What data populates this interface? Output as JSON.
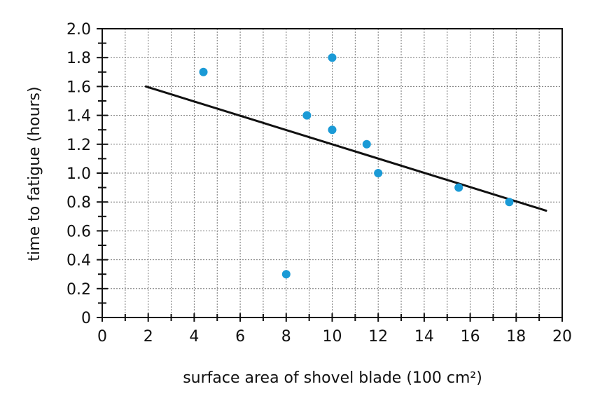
{
  "chart_data": {
    "type": "scatter",
    "xlabel": "surface area of shovel blade (100 cm²)",
    "ylabel": "time to fatigue (hours)",
    "xlim": [
      0,
      20
    ],
    "ylim": [
      0,
      2.0
    ],
    "x_ticks": [
      0,
      2,
      4,
      6,
      8,
      10,
      12,
      14,
      16,
      18,
      20
    ],
    "y_ticks": [
      0,
      0.2,
      0.4,
      0.6,
      0.8,
      1.0,
      1.2,
      1.4,
      1.6,
      1.8,
      2.0
    ],
    "x_tick_labels": [
      "0",
      "2",
      "4",
      "6",
      "8",
      "10",
      "12",
      "14",
      "16",
      "18",
      "20"
    ],
    "y_tick_labels": [
      "0",
      "0.2",
      "0.4",
      "0.6",
      "0.8",
      "1.0",
      "1.2",
      "1.4",
      "1.6",
      "1.8",
      "2.0"
    ],
    "grid": true,
    "points": [
      {
        "x": 4.4,
        "y": 1.7
      },
      {
        "x": 8.0,
        "y": 0.3
      },
      {
        "x": 8.9,
        "y": 1.4
      },
      {
        "x": 10.0,
        "y": 1.8
      },
      {
        "x": 10.0,
        "y": 1.3
      },
      {
        "x": 11.5,
        "y": 1.2
      },
      {
        "x": 12.0,
        "y": 1.0
      },
      {
        "x": 15.5,
        "y": 0.9
      },
      {
        "x": 17.7,
        "y": 0.8
      }
    ],
    "trend_line": {
      "x": [
        1.9,
        19.3
      ],
      "y": [
        1.6,
        0.74
      ]
    },
    "colors": {
      "points": "#1a9ad6",
      "trend_line": "#111111",
      "grid": "#777777",
      "axis": "#111111"
    }
  }
}
